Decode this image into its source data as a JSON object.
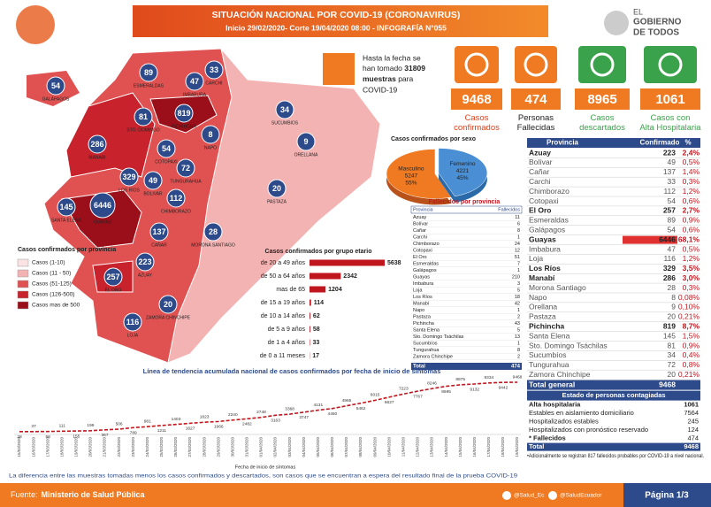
{
  "header": {
    "title": "SITUACIÓN NACIONAL POR  COVID-19 (CORONAVIRUS)",
    "subtitle": "Inicio 29/02/2020- Corte 19/04/2020 08:00  -  INFOGRAFÍA N°055",
    "logo": [
      "EL",
      "GOBIERNO",
      "DE TODOS"
    ]
  },
  "tests": {
    "line1": "Hasta la fecha se",
    "line2": "han tomado",
    "value": "31809",
    "unit": "muestras",
    "line3": "para",
    "line4": "COVID-19"
  },
  "kpis": [
    {
      "value": "9468",
      "label": "Casos confirmados"
    },
    {
      "value": "474",
      "label": "Personas Fallecidas"
    },
    {
      "value": "8965",
      "label": "Casos descartados"
    },
    {
      "value": "1061",
      "label": "Casos con Alta Hospitalaria"
    }
  ],
  "map": {
    "provinces": [
      {
        "name": "GALÁPAGOS",
        "value": "54"
      },
      {
        "name": "ESMERALDAS",
        "value": "89"
      },
      {
        "name": "CARCHI",
        "value": "33"
      },
      {
        "name": "IMBABURA",
        "value": "47"
      },
      {
        "name": "PICHINCHA",
        "value": "819"
      },
      {
        "name": "STO. DOMINGO",
        "value": "81"
      },
      {
        "name": "SUCUMBIOS",
        "value": "34"
      },
      {
        "name": "NAPO",
        "value": "8"
      },
      {
        "name": "ORELLANA",
        "value": "9"
      },
      {
        "name": "MANABI",
        "value": "286"
      },
      {
        "name": "COTOPAXI",
        "value": "54"
      },
      {
        "name": "TUNGURAHUA",
        "value": "72"
      },
      {
        "name": "LOS RÍOS",
        "value": "329"
      },
      {
        "name": "BOLIVAR",
        "value": "49"
      },
      {
        "name": "PASTAZA",
        "value": "20"
      },
      {
        "name": "SANTA ELENA",
        "value": "145"
      },
      {
        "name": "GUAYAS",
        "value": "6446"
      },
      {
        "name": "CHIMBORAZO",
        "value": "112"
      },
      {
        "name": "CAÑAR",
        "value": "137"
      },
      {
        "name": "MORONA SANTIAGO",
        "value": "28"
      },
      {
        "name": "AZUAY",
        "value": "223"
      },
      {
        "name": "EL ORO",
        "value": "257"
      },
      {
        "name": "LOJA",
        "value": "116"
      },
      {
        "name": "ZAMORA CHINCHIPE",
        "value": "20"
      }
    ],
    "legend_title": "Casos confirmados por provincia",
    "legend": [
      "Casos (1-10)",
      "Casos (11 - 50)",
      "Casos (51-125)",
      "Casos (126-500)",
      "Casos mas de 500"
    ]
  },
  "sex_chart": {
    "type": "pie",
    "title": "Casos confirmados por sexo",
    "categories": [
      "Masculino",
      "Femenino"
    ],
    "values": [
      5247,
      4221
    ],
    "value_labels": [
      "55%",
      "45%"
    ],
    "colors": [
      "#f07a22",
      "#4a8fd4"
    ]
  },
  "age_chart": {
    "type": "bar",
    "title": "Casos confirmados por grupo etario",
    "categories": [
      "de 20 a 49 años",
      "de 50 a 64 años",
      "mas de 65",
      "de 15 a 19 años",
      "de 10 a 14 años",
      "de 5 a 9 años",
      "de 1 a 4 años",
      "de 0 a 11 meses"
    ],
    "values": [
      5638,
      2342,
      1204,
      114,
      62,
      58,
      33,
      17
    ],
    "color": "#c0161e"
  },
  "deaths_table": {
    "title": "Fallecidos por provincia",
    "header": [
      "Provincia",
      "Fallecidos"
    ],
    "rows": [
      [
        "Azuay",
        "11"
      ],
      [
        "Bolívar",
        "6"
      ],
      [
        "Cañar",
        "8"
      ],
      [
        "Carchi",
        "1"
      ],
      [
        "Chimborazo",
        "24"
      ],
      [
        "Cotopaxi",
        "12"
      ],
      [
        "El Oro",
        "51"
      ],
      [
        "Esmeraldas",
        "7"
      ],
      [
        "Galápagos",
        "1"
      ],
      [
        "Guayas",
        "210"
      ],
      [
        "Imbabura",
        "3"
      ],
      [
        "Loja",
        "5"
      ],
      [
        "Los Ríos",
        "18"
      ],
      [
        "Manabí",
        "42"
      ],
      [
        "Napo",
        "1"
      ],
      [
        "Pastaza",
        "2"
      ],
      [
        "Pichincha",
        "43"
      ],
      [
        "Santa Elena",
        "5"
      ],
      [
        "Sto. Domingo Tsáchilas",
        "13"
      ],
      [
        "Sucumbíos",
        "1"
      ],
      [
        "Tungurahua",
        "8"
      ],
      [
        "Zamora Chinchipe",
        "2"
      ]
    ],
    "total": [
      "Total",
      "474"
    ]
  },
  "province_table": {
    "header": [
      "Provincia",
      "Confirmado",
      "%"
    ],
    "rows": [
      [
        "Azuay",
        "223",
        "2,4%"
      ],
      [
        "Bolívar",
        "49",
        "0,5%"
      ],
      [
        "Cañar",
        "137",
        "1,4%"
      ],
      [
        "Carchi",
        "33",
        "0,3%"
      ],
      [
        "Chimborazo",
        "112",
        "1,2%"
      ],
      [
        "Cotopaxi",
        "54",
        "0,6%"
      ],
      [
        "El Oro",
        "257",
        "2,7%"
      ],
      [
        "Esmeraldas",
        "89",
        "0,9%"
      ],
      [
        "Galápagos",
        "54",
        "0,6%"
      ],
      [
        "Guayas",
        "6446",
        "68,1%"
      ],
      [
        "Imbabura",
        "47",
        "0,5%"
      ],
      [
        "Loja",
        "116",
        "1,2%"
      ],
      [
        "Los Ríos",
        "329",
        "3,5%"
      ],
      [
        "Manabí",
        "286",
        "3,0%"
      ],
      [
        "Morona Santiago",
        "28",
        "0,3%"
      ],
      [
        "Napo",
        "8",
        "0,08%"
      ],
      [
        "Orellana",
        "9",
        "0,10%"
      ],
      [
        "Pastaza",
        "20",
        "0,21%"
      ],
      [
        "Pichincha",
        "819",
        "8,7%"
      ],
      [
        "Santa Elena",
        "145",
        "1,5%"
      ],
      [
        "Sto. Domingo Tsáchilas",
        "81",
        "0,9%"
      ],
      [
        "Sucumbíos",
        "34",
        "0,4%"
      ],
      [
        "Tungurahua",
        "72",
        "0,8%"
      ],
      [
        "Zamora Chinchipe",
        "20",
        "0,21%"
      ]
    ],
    "total": [
      "Total general",
      "9468"
    ]
  },
  "status_table": {
    "title": "Estado de personas contagiadas",
    "rows": [
      [
        "Alta hospitalaria",
        "1061"
      ],
      [
        "Estables en aislamiento domiciliario",
        "7564"
      ],
      [
        "Hospitalizados estables",
        "245"
      ],
      [
        "Hospitalizados con pronóstico reservado",
        "124"
      ],
      [
        "* Fallecidos",
        "474"
      ]
    ],
    "total": [
      "Total",
      "9468"
    ],
    "note": "•Adicionalmente se registran 817 fallecidos probables por COVID-19 a nivel nacional."
  },
  "trend_chart": {
    "type": "line",
    "title": "Línea de tendencia acumulada nacional de casos confirmados por fecha de inicio de síntomas",
    "x_label": "Fecha de inicio de síntomas",
    "color": "#c0161e",
    "categories": [
      "15/03/2020",
      "16/03/2020",
      "17/03/2020",
      "18/03/2020",
      "19/03/2020",
      "20/03/2020",
      "21/03/2020",
      "22/03/2020",
      "23/03/2020",
      "24/03/2020",
      "25/03/2020",
      "26/03/2020",
      "27/03/2020",
      "28/03/2020",
      "29/03/2020",
      "30/03/2020",
      "31/03/2020",
      "01/04/2020",
      "02/04/2020",
      "03/04/2020",
      "04/04/2020",
      "05/04/2020",
      "06/04/2020",
      "07/04/2020",
      "08/04/2020",
      "09/04/2020",
      "10/04/2020",
      "11/04/2020",
      "12/04/2020",
      "13/04/2020",
      "14/04/2020",
      "15/04/2020",
      "16/04/2020",
      "17/04/2020",
      "18/04/2020",
      "19/04/2020"
    ],
    "values": [
      28,
      37,
      58,
      111,
      155,
      199,
      367,
      506,
      789,
      981,
      1211,
      1403,
      1627,
      1823,
      1966,
      2240,
      2482,
      2748,
      3163,
      3368,
      3747,
      4131,
      4450,
      4965,
      5462,
      6015,
      6627,
      7223,
      7767,
      8246,
      8695,
      8975,
      9132,
      9334,
      9442,
      9468
    ]
  },
  "footer": {
    "note": "La diferencia entre las muestras tomadas menos los casos confirmados y descartados, son casos que se encuentran a espera del resultado final de la prueba COVID-19",
    "source_label": "Fuente:",
    "source": "Ministerio de Salud Pública",
    "twitter": "@Salud_Ec",
    "facebook": "@SaludEcuador",
    "page": "Página 1/3"
  }
}
